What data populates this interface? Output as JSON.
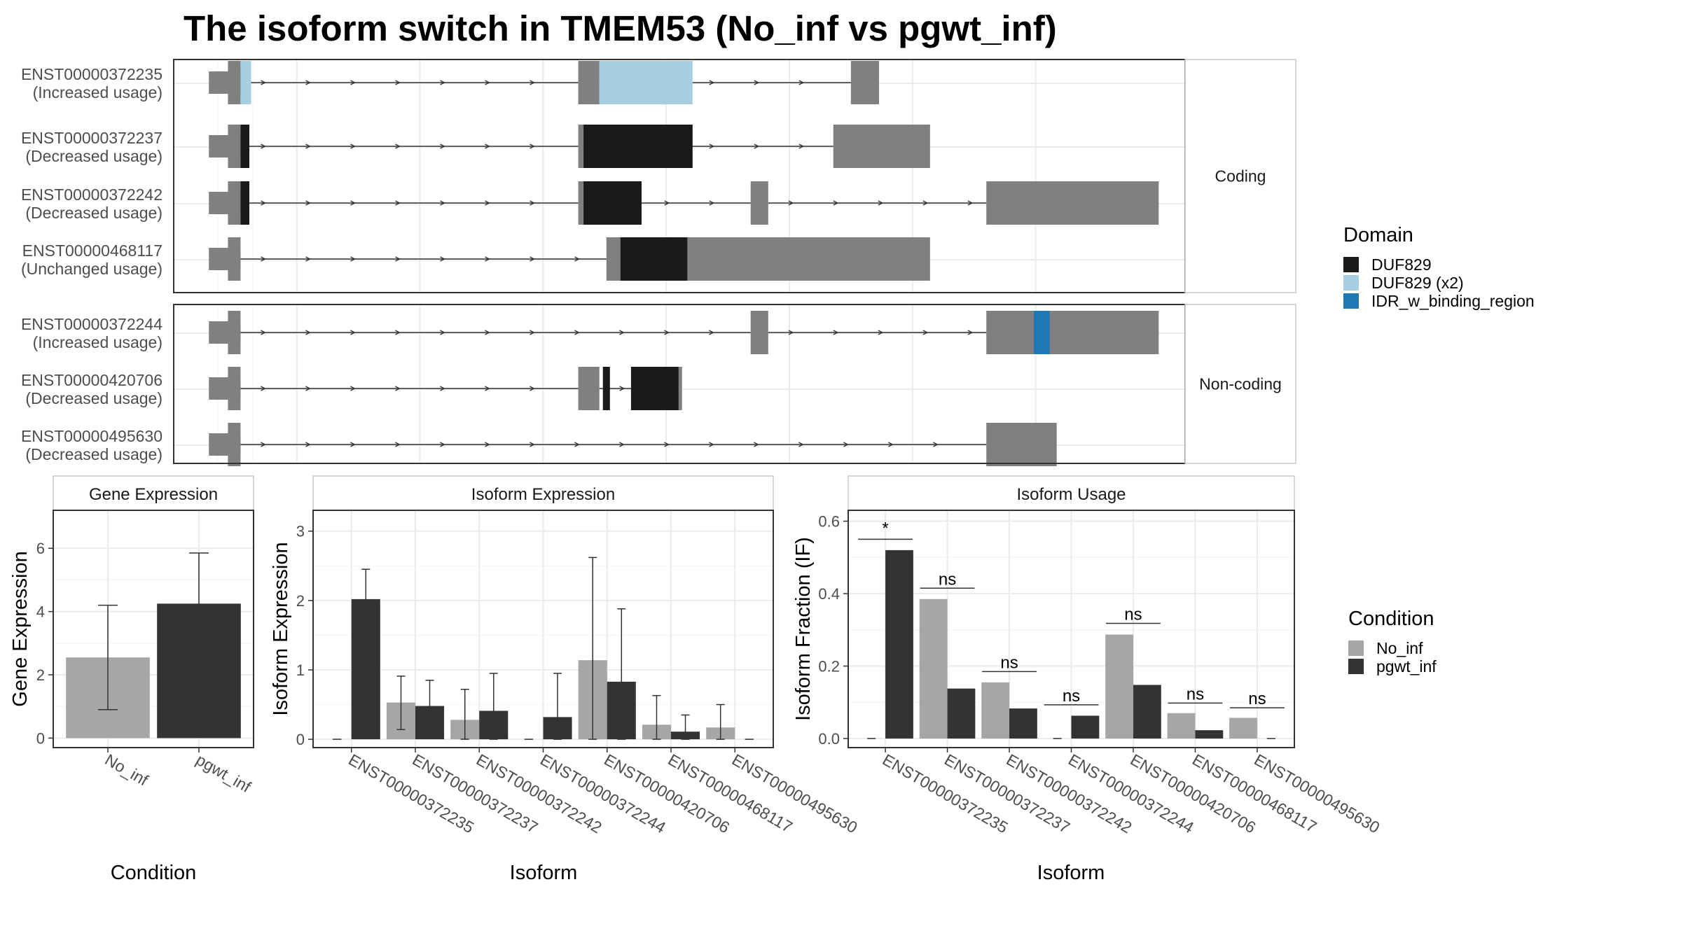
{
  "title": "The isoform switch in TMEM53 (No_inf vs pgwt_inf)",
  "colors": {
    "exon": "#808080",
    "duf829": "#1a1a1a",
    "duf829_x2": "#a6cee3",
    "idr": "#1f78b4",
    "no_inf": "#a6a6a6",
    "pgwt_inf": "#333333",
    "grid": "#ebebeb",
    "strip_bg": "#ffffff"
  },
  "structure": {
    "groups": [
      {
        "label": "Coding",
        "tracks": [
          {
            "id": "ENST00000372235",
            "usage": "(Increased usage)",
            "exons": [
              [
                2.0,
                3.8
              ],
              [
                23.0,
                24.2
              ],
              [
                38.5,
                40.1
              ]
            ],
            "introns": [
              [
                3.8,
                23.0
              ],
              [
                24.2,
                38.5
              ]
            ],
            "domains": [
              [
                3.8,
                4.4,
                "duf829_x2"
              ],
              [
                24.2,
                29.5,
                "duf829_x2"
              ]
            ]
          },
          {
            "id": "ENST00000372237",
            "usage": "(Decreased usage)",
            "exons": [
              [
                2.0,
                3.8
              ],
              [
                23.0,
                24.2
              ],
              [
                37.5,
                43.0
              ]
            ],
            "introns": [
              [
                3.8,
                23.0
              ],
              [
                24.2,
                37.5
              ]
            ],
            "domains": [
              [
                3.8,
                4.3,
                "duf829"
              ],
              [
                23.3,
                29.5,
                "duf829"
              ]
            ]
          },
          {
            "id": "ENST00000372242",
            "usage": "(Decreased usage)",
            "exons": [
              [
                2.0,
                3.8
              ],
              [
                23.0,
                24.2
              ],
              [
                32.8,
                33.8
              ],
              [
                46.2,
                56.0
              ]
            ],
            "introns": [
              [
                3.8,
                23.0
              ],
              [
                24.2,
                32.8
              ],
              [
                33.8,
                46.2
              ]
            ],
            "domains": [
              [
                3.8,
                4.3,
                "duf829"
              ],
              [
                23.3,
                26.6,
                "duf829"
              ]
            ]
          },
          {
            "id": "ENST00000468117",
            "usage": "(Unchanged usage)",
            "exons": [
              [
                2.0,
                3.8
              ],
              [
                24.6,
                43.0
              ]
            ],
            "introns": [
              [
                3.8,
                24.6
              ]
            ],
            "domains": [
              [
                25.4,
                29.2,
                "duf829"
              ]
            ]
          }
        ]
      },
      {
        "label": "Non-coding",
        "tracks": [
          {
            "id": "ENST00000372244",
            "usage": "(Increased usage)",
            "exons": [
              [
                2.0,
                3.8
              ],
              [
                32.8,
                33.8
              ],
              [
                46.2,
                56.0
              ]
            ],
            "introns": [
              [
                3.8,
                32.8
              ],
              [
                33.8,
                46.2
              ]
            ],
            "domains": [
              [
                48.9,
                49.8,
                "idr"
              ]
            ]
          },
          {
            "id": "ENST00000420706",
            "usage": "(Decreased usage)",
            "exons": [
              [
                2.0,
                3.8
              ],
              [
                23.0,
                24.2
              ],
              [
                26.0,
                28.9
              ]
            ],
            "introns": [
              [
                3.8,
                23.0
              ],
              [
                24.2,
                26.0
              ]
            ],
            "domains": [
              [
                24.4,
                24.8,
                "duf829"
              ],
              [
                26.0,
                28.7,
                "duf829"
              ]
            ]
          },
          {
            "id": "ENST00000495630",
            "usage": "(Decreased usage)",
            "exons": [
              [
                2.0,
                3.8
              ],
              [
                46.2,
                50.2
              ]
            ],
            "introns": [
              [
                3.8,
                46.2
              ]
            ],
            "domains": []
          }
        ]
      }
    ]
  },
  "legend_domain": {
    "title": "Domain",
    "items": [
      {
        "label": "DUF829",
        "color": "#1a1a1a"
      },
      {
        "label": "DUF829 (x2)",
        "color": "#a6cee3"
      },
      {
        "label": "IDR_w_binding_region",
        "color": "#1f78b4"
      }
    ]
  },
  "legend_condition": {
    "title": "Condition",
    "items": [
      {
        "label": "No_inf",
        "color": "#a6a6a6"
      },
      {
        "label": "pgwt_inf",
        "color": "#333333"
      }
    ]
  },
  "chart_data": [
    {
      "type": "bar",
      "title": "Gene Expression",
      "xlabel": "Condition",
      "ylabel": "Gene Expression",
      "ylim": [
        -0.3,
        7.2
      ],
      "yticks": [
        0,
        2,
        4,
        6
      ],
      "categories": [
        "No_inf",
        "pgwt_inf"
      ],
      "values": [
        2.55,
        4.25
      ],
      "errors": [
        [
          0.9,
          4.2
        ],
        [
          2.65,
          5.85
        ]
      ]
    },
    {
      "type": "bar",
      "title": "Isoform Expression",
      "xlabel": "Isoform",
      "ylabel": "Isoform Expression",
      "ylim": [
        -0.12,
        3.3
      ],
      "yticks": [
        0,
        1,
        2,
        3
      ],
      "categories": [
        "ENST00000372235",
        "ENST00000372237",
        "ENST00000372242",
        "ENST00000372244",
        "ENST00000420706",
        "ENST00000468117",
        "ENST00000495630"
      ],
      "series": [
        {
          "name": "No_inf",
          "values": [
            0.0,
            0.53,
            0.28,
            0.0,
            1.14,
            0.21,
            0.17
          ],
          "errors": [
            [
              0,
              0
            ],
            [
              0.14,
              0.91
            ],
            [
              0,
              0.72
            ],
            [
              0,
              0
            ],
            [
              0,
              2.62
            ],
            [
              0,
              0.63
            ],
            [
              0,
              0.5
            ]
          ]
        },
        {
          "name": "pgwt_inf",
          "values": [
            2.02,
            0.48,
            0.41,
            0.32,
            0.83,
            0.11,
            0.0
          ],
          "errors": [
            [
              1.6,
              2.45
            ],
            [
              0.1,
              0.85
            ],
            [
              0,
              0.95
            ],
            [
              0,
              0.95
            ],
            [
              0,
              1.88
            ],
            [
              0,
              0.35
            ],
            [
              0,
              0
            ]
          ]
        }
      ]
    },
    {
      "type": "bar",
      "title": "Isoform Usage",
      "xlabel": "Isoform",
      "ylabel": "Isoform Fraction (IF)",
      "ylim": [
        -0.025,
        0.63
      ],
      "yticks": [
        0.0,
        0.2,
        0.4,
        0.6
      ],
      "ytick_labels": [
        "0.0",
        "0.2",
        "0.4",
        "0.6"
      ],
      "categories": [
        "ENST00000372235",
        "ENST00000372237",
        "ENST00000372242",
        "ENST00000372244",
        "ENST00000420706",
        "ENST00000468117",
        "ENST00000495630"
      ],
      "series": [
        {
          "name": "No_inf",
          "values": [
            0.0,
            0.385,
            0.155,
            0.0,
            0.287,
            0.07,
            0.057
          ]
        },
        {
          "name": "pgwt_inf",
          "values": [
            0.52,
            0.138,
            0.083,
            0.063,
            0.148,
            0.023,
            0.0
          ]
        }
      ],
      "significance": [
        {
          "label": "*",
          "y": 0.55
        },
        {
          "label": "ns",
          "y": 0.415
        },
        {
          "label": "ns",
          "y": 0.185
        },
        {
          "label": "ns",
          "y": 0.093
        },
        {
          "label": "ns",
          "y": 0.318
        },
        {
          "label": "ns",
          "y": 0.098
        },
        {
          "label": "ns",
          "y": 0.085
        }
      ]
    }
  ]
}
